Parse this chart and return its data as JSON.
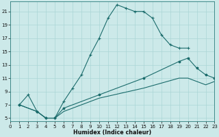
{
  "xlabel": "Humidex (Indice chaleur)",
  "bg_color": "#cce9e9",
  "grid_color": "#aad5d5",
  "line_color": "#1a6b6b",
  "xlim": [
    0,
    23
  ],
  "ylim": [
    4.5,
    22.5
  ],
  "xticks": [
    0,
    1,
    2,
    3,
    4,
    5,
    6,
    7,
    8,
    9,
    10,
    11,
    12,
    13,
    14,
    15,
    16,
    17,
    18,
    19,
    20,
    21,
    22,
    23
  ],
  "yticks": [
    5,
    7,
    9,
    11,
    13,
    15,
    17,
    19,
    21
  ],
  "line1_x": [
    1,
    2,
    3,
    4,
    5,
    6,
    7,
    8,
    9,
    10,
    11,
    12,
    13,
    14,
    15,
    16,
    17,
    18,
    19,
    20
  ],
  "line1_y": [
    7,
    8.5,
    6,
    5,
    5,
    7.5,
    9.5,
    11.5,
    14.5,
    17,
    20,
    22,
    21.5,
    21,
    21,
    20,
    17.5,
    16,
    15.5,
    15.5
  ],
  "line2_x": [
    1,
    3,
    4,
    5,
    6,
    10,
    15,
    19,
    20,
    21,
    22,
    23
  ],
  "line2_y": [
    7,
    6,
    5,
    5,
    6.5,
    8.5,
    11,
    13.5,
    14,
    12.5,
    11.5,
    11
  ],
  "line3_x": [
    1,
    3,
    4,
    5,
    6,
    10,
    15,
    19,
    20,
    21,
    22,
    23
  ],
  "line3_y": [
    7,
    6,
    5,
    5,
    6,
    8,
    9.5,
    11,
    11,
    10.5,
    10,
    10.5
  ]
}
